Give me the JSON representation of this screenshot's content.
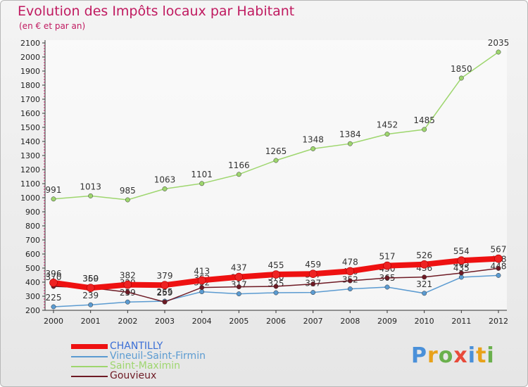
{
  "title": "Evolution des Impôts locaux par Habitant",
  "subtitle": "(en € et par an)",
  "logo_text": "Proxiti",
  "logo_colors": [
    "#4a90d9",
    "#e8a21a",
    "#6ab04c",
    "#e84a3a",
    "#4a90d9",
    "#e8a21a",
    "#6ab04c"
  ],
  "chart_data": {
    "type": "line",
    "x": [
      "2000",
      "2001",
      "2002",
      "2003",
      "2004",
      "2005",
      "2006",
      "2007",
      "2008",
      "2009",
      "2010",
      "2011",
      "2012"
    ],
    "ylim": [
      200,
      2100
    ],
    "yticks": [
      200,
      300,
      400,
      500,
      600,
      700,
      800,
      900,
      1000,
      1100,
      1200,
      1300,
      1400,
      1500,
      1600,
      1700,
      1800,
      1900,
      2000,
      2100
    ],
    "grid": false,
    "legend_position": "bottom-left",
    "series": [
      {
        "name": "Saint-Maximin",
        "color": "#9ed66e",
        "values": [
          991,
          1013,
          985,
          1063,
          1101,
          1166,
          1265,
          1348,
          1384,
          1452,
          1485,
          1850,
          2035
        ],
        "labels": [
          "991",
          "1013",
          "985",
          "1063",
          "1101",
          "1166",
          "1265",
          "1348",
          "1384",
          "1452",
          "1485",
          "1850",
          "2035"
        ]
      },
      {
        "name": "Vineuil-Saint-Firmin",
        "color": "#5b9bd1",
        "values": [
          225,
          239,
          259,
          265,
          332,
          317,
          325,
          327,
          352,
          365,
          321,
          435,
          448
        ],
        "labels": [
          "225",
          "239",
          "259",
          "265",
          "332",
          "317",
          "325",
          "327",
          "352",
          "365",
          "321",
          "435",
          "448"
        ]
      },
      {
        "name": "Gouvieux",
        "color": "#6e1a24",
        "values": [
          370,
          360,
          329,
          259,
          362,
          367,
          370,
          387,
          410,
          430,
          436,
          465,
          498
        ],
        "labels": [
          "370",
          "360",
          "329",
          "259",
          "362",
          "367",
          "370",
          "387",
          "410",
          "430",
          "436",
          "465",
          "498"
        ]
      },
      {
        "name": "CHANTILLY",
        "color": "#ee1111",
        "values": [
          396,
          359,
          382,
          379,
          413,
          437,
          455,
          459,
          478,
          517,
          526,
          554,
          567
        ],
        "labels": [
          "396",
          "359",
          "382",
          "379",
          "413",
          "437",
          "455",
          "459",
          "478",
          "517",
          "526",
          "554",
          "567"
        ]
      }
    ],
    "legend_order": [
      "CHANTILLY",
      "Vineuil-Saint-Firmin",
      "Saint-Maximin",
      "Gouvieux"
    ]
  }
}
